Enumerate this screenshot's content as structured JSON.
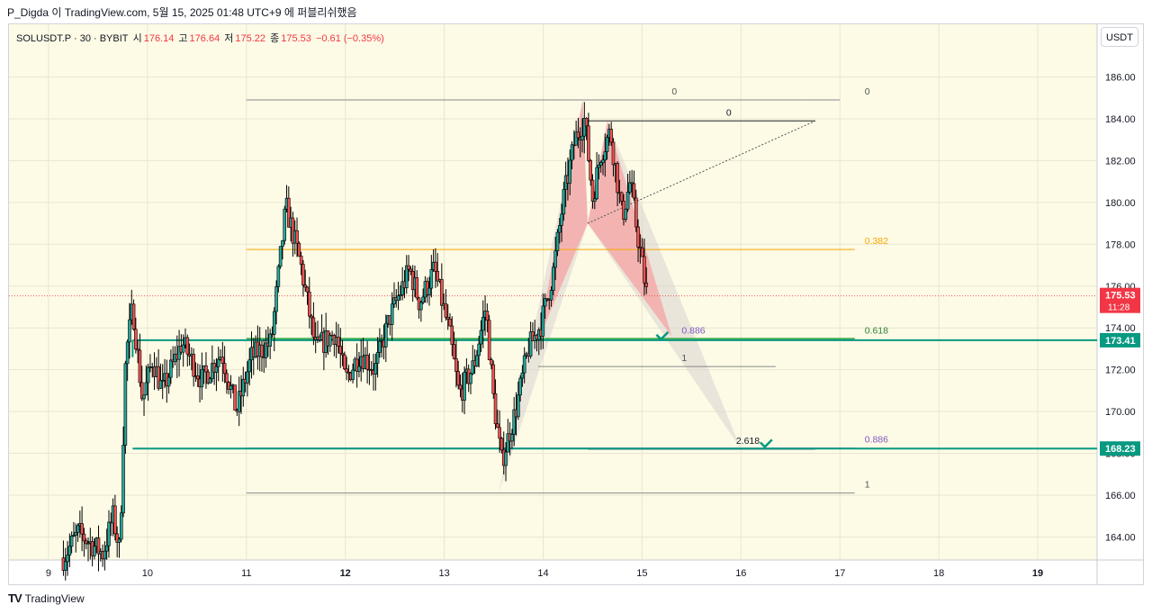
{
  "caption": "P_Digda 이 TradingView.com, 5월 15, 2025 01:48 UTC+9 에 퍼블리쉬했음",
  "legend": {
    "symbol": "SOLUSDT.P · 30 · BYBIT",
    "open_label": "시",
    "open": "176.14",
    "high_label": "고",
    "high": "176.64",
    "low_label": "저",
    "low": "175.22",
    "close_label": "종",
    "close": "175.53",
    "change": "−0.61 (−0.35%)"
  },
  "unit_button": "USDT",
  "footer": {
    "brand": "TradingView"
  },
  "colors": {
    "background": "#fdfbe6",
    "up": "#26a69a",
    "down": "#ef5350",
    "grid": "#e8e6d0",
    "teal_line": "#089981",
    "orange_fib": "#f7a600",
    "purple_fib": "#7e57c2",
    "pattern_red": "#f7a0a0",
    "pattern_gray": "#d8d4d0"
  },
  "chart_data": {
    "type": "candlestick",
    "x_tick_labels": [
      "9",
      "10",
      "11",
      "12",
      "13",
      "14",
      "15",
      "16",
      "17",
      "18",
      "19"
    ],
    "bold_x_ticks": [
      "12",
      "19"
    ],
    "y_tick_labels": [
      "164.00",
      "166.00",
      "168.00",
      "170.00",
      "172.00",
      "174.00",
      "176.00",
      "178.00",
      "180.00",
      "182.00",
      "184.00",
      "186.00"
    ],
    "ylim": [
      162.9,
      187.4
    ],
    "xlim": [
      8.6,
      19.6
    ],
    "current_price": {
      "value": 175.53,
      "label": "175.53",
      "countdown": "11:28"
    },
    "price_tags": [
      {
        "value": 173.41,
        "label": "173.41"
      },
      {
        "value": 168.23,
        "label": "168.23"
      }
    ],
    "horizontal_levels": [
      {
        "y": 184.9,
        "x_from": 11.0,
        "x_to": 16.6,
        "label": "0",
        "label_x": 15.3,
        "style": "gray"
      },
      {
        "y": 184.9,
        "x_from": 16.6,
        "x_to": 17.0,
        "label": "0",
        "label_x": 17.25,
        "style": "gray"
      },
      {
        "y": 183.9,
        "x_from": 14.45,
        "x_to": 16.75,
        "label": "0",
        "label_x": 15.85,
        "style": "black"
      },
      {
        "y": 177.75,
        "x_from": 11.0,
        "x_to": 17.15,
        "label": "0.382",
        "label_x": 17.25,
        "style": "orange"
      },
      {
        "y": 173.48,
        "x_from": 13.95,
        "x_to": 16.35,
        "label": "0.886",
        "label_x": 15.4,
        "style": "purple"
      },
      {
        "y": 173.48,
        "x_from": 11.0,
        "x_to": 17.15,
        "label": "0.618",
        "label_x": 17.25,
        "style": "green"
      },
      {
        "y": 172.15,
        "x_from": 13.95,
        "x_to": 16.35,
        "label": "1",
        "label_x": 15.4,
        "style": "gray"
      },
      {
        "y": 168.25,
        "x_from": 11.0,
        "x_to": 17.15,
        "label": "0.886",
        "label_x": 17.25,
        "style": "purple"
      },
      {
        "y": 168.2,
        "x_from": 14.45,
        "x_to": 16.75,
        "label": "2.618",
        "label_x": 15.95,
        "style": "black"
      },
      {
        "y": 166.1,
        "x_from": 11.0,
        "x_to": 17.15,
        "label": "1",
        "label_x": 17.25,
        "style": "gray"
      }
    ],
    "pattern_points": {
      "X": [
        13.55,
        166.1
      ],
      "A": [
        14.4,
        184.9
      ],
      "B": [
        14.45,
        179.0
      ],
      "C": [
        14.65,
        183.9
      ],
      "D1": [
        15.3,
        173.6
      ],
      "D2": [
        16.0,
        168.2
      ]
    },
    "dotted_trend": {
      "from": [
        14.45,
        179.0
      ],
      "to": [
        16.75,
        183.9
      ]
    },
    "checkmarks": [
      {
        "x": 15.2,
        "y": 173.5
      },
      {
        "x": 16.25,
        "y": 168.35
      }
    ],
    "price_path": [
      [
        9.15,
        163.0
      ],
      [
        9.3,
        164.2
      ],
      [
        9.55,
        163.2
      ],
      [
        9.65,
        165.0
      ],
      [
        9.72,
        163.3
      ],
      [
        9.78,
        172.6
      ],
      [
        9.85,
        175.0
      ],
      [
        9.95,
        170.5
      ],
      [
        10.05,
        172.5
      ],
      [
        10.15,
        171.0
      ],
      [
        10.35,
        173.3
      ],
      [
        10.55,
        171.5
      ],
      [
        10.75,
        172.8
      ],
      [
        10.9,
        170.0
      ],
      [
        11.05,
        172.6
      ],
      [
        11.25,
        173.3
      ],
      [
        11.4,
        179.8
      ],
      [
        11.55,
        177.0
      ],
      [
        11.7,
        173.0
      ],
      [
        11.9,
        173.8
      ],
      [
        12.0,
        171.5
      ],
      [
        12.15,
        172.8
      ],
      [
        12.3,
        172.0
      ],
      [
        12.45,
        174.5
      ],
      [
        12.65,
        176.8
      ],
      [
        12.75,
        175.2
      ],
      [
        12.9,
        176.8
      ],
      [
        13.05,
        173.8
      ],
      [
        13.15,
        170.8
      ],
      [
        13.3,
        172.2
      ],
      [
        13.42,
        175.0
      ],
      [
        13.5,
        170.5
      ],
      [
        13.58,
        167.6
      ],
      [
        13.72,
        170.0
      ],
      [
        13.85,
        173.0
      ],
      [
        13.98,
        174.2
      ],
      [
        14.1,
        176.6
      ],
      [
        14.2,
        180.0
      ],
      [
        14.32,
        183.0
      ],
      [
        14.42,
        184.0
      ],
      [
        14.5,
        180.2
      ],
      [
        14.58,
        182.3
      ],
      [
        14.68,
        183.4
      ],
      [
        14.8,
        179.3
      ],
      [
        14.88,
        181.0
      ],
      [
        14.95,
        178.6
      ],
      [
        15.05,
        175.5
      ]
    ]
  }
}
